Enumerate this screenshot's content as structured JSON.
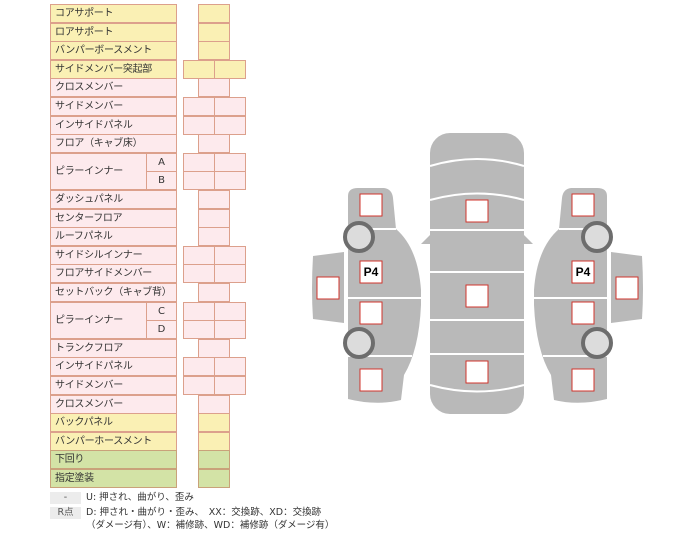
{
  "rows": [
    {
      "label": "コアサポート",
      "color": "y",
      "cells": 1
    },
    {
      "label": "ロアサポート",
      "color": "y",
      "cells": 1
    },
    {
      "label": "バンパーボースメント",
      "color": "y",
      "cells": 1
    },
    {
      "label": "サイドメンバー突起部",
      "color": "y",
      "cells": 2
    },
    {
      "label": "クロスメンバー",
      "color": "p",
      "cells": 1
    },
    {
      "label": "サイドメンバー",
      "color": "p",
      "cells": 2
    },
    {
      "label": "インサイドパネル",
      "color": "p",
      "cells": 2
    },
    {
      "label": "フロア（キャブ床）",
      "color": "p",
      "cells": 1
    },
    {
      "label": "ピラーインナー",
      "sub": "A",
      "color": "p",
      "cells": 2,
      "group_start": true
    },
    {
      "label": "",
      "sub": "B",
      "color": "p",
      "cells": 2,
      "group_cont": true
    },
    {
      "label": "ダッシュパネル",
      "color": "p",
      "cells": 1
    },
    {
      "label": "センターフロア",
      "color": "p",
      "cells": 1
    },
    {
      "label": "ルーフパネル",
      "color": "p",
      "cells": 1
    },
    {
      "label": "サイドシルインナー",
      "color": "p",
      "cells": 2
    },
    {
      "label": "フロアサイドメンバー",
      "color": "p",
      "cells": 2
    },
    {
      "label": "セットバック（キャブ背）",
      "color": "p",
      "cells": 1
    },
    {
      "label": "ピラーインナー",
      "sub": "C",
      "color": "p",
      "cells": 2,
      "group_start": true
    },
    {
      "label": "",
      "sub": "D",
      "color": "p",
      "cells": 2,
      "group_cont": true
    },
    {
      "label": "トランクフロア",
      "color": "p",
      "cells": 1
    },
    {
      "label": "インサイドパネル",
      "color": "p",
      "cells": 2
    },
    {
      "label": "サイドメンバー",
      "color": "p",
      "cells": 2
    },
    {
      "label": "クロスメンバー",
      "color": "p",
      "cells": 1
    },
    {
      "label": "バックパネル",
      "color": "y",
      "cells": 1
    },
    {
      "label": "バンパーホースメント",
      "color": "y",
      "cells": 1
    },
    {
      "label": "下回り",
      "color": "g",
      "cells": 1
    },
    {
      "label": "指定塗装",
      "color": "g",
      "cells": 1
    }
  ],
  "legend": {
    "key1": "-",
    "text1": "U: 押され、曲がり、歪み",
    "key2": "R点",
    "text2": "D: 押され・曲がり・歪み、　XX：交換跡、XD：交換跡",
    "text3": "（ダメージ有）、W：補修跡、WD：補修跡（ダメージ有）"
  },
  "diagram": {
    "left_marker": "P4",
    "right_marker": "P4",
    "body_color": "#b9b9b9",
    "box_border": "#d0342c"
  }
}
